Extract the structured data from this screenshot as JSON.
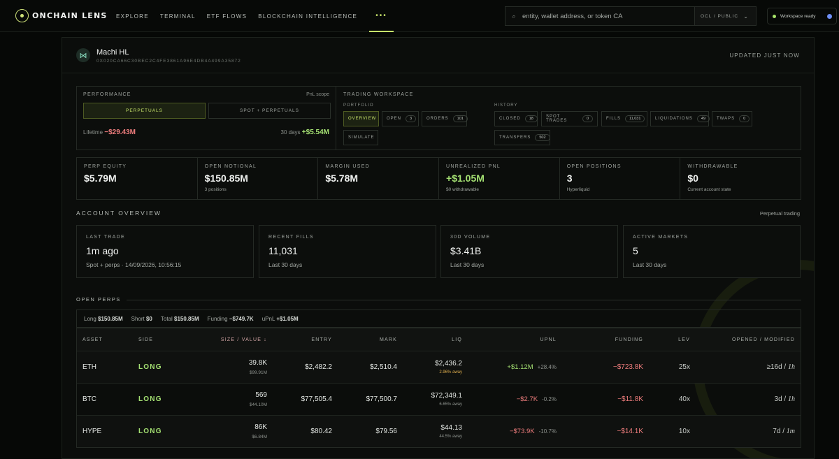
{
  "brand": {
    "name": "ONCHAIN LENS"
  },
  "nav": {
    "items": [
      "EXPLORE",
      "TERMINAL",
      "ETF FLOWS",
      "BLOCKCHAIN INTELLIGENCE"
    ],
    "more": "•••"
  },
  "search": {
    "placeholder": "entity, wallet address, or token CA",
    "scope": "OCL / PUBLIC"
  },
  "workspace": {
    "status": "Workspace ready"
  },
  "header": {
    "name": "Machi HL",
    "address": "0X020CA66C30BEC2C4FE3861A96E4DB4A499A35872",
    "updated": "UPDATED JUST NOW"
  },
  "performance": {
    "title": "PERFORMANCE",
    "scope": "PnL scope",
    "toggle_perps": "PERPETUALS",
    "toggle_spot": "SPOT + PERPETUALS",
    "lifetime_label": "Lifetime",
    "lifetime_value": "−$29.43M",
    "days_label": "30 days",
    "days_value": "+$5.54M"
  },
  "trading_workspace": {
    "title": "TRADING WORKSPACE",
    "portfolio_label": "PORTFOLIO",
    "history_label": "HISTORY",
    "overview": "OVERVIEW",
    "open": "OPEN",
    "open_count": "3",
    "orders": "ORDERS",
    "orders_count": "101",
    "simulate": "SIMULATE",
    "closed": "CLOSED",
    "closed_count": "18",
    "spot_trades": "SPOT TRADES",
    "spot_trades_count": "0",
    "fills": "FILLS",
    "fills_count": "11,031",
    "liquidations": "LIQUIDATIONS",
    "liquidations_count": "49",
    "twaps": "TWAPS",
    "twaps_count": "0",
    "transfers": "TRANSFERS",
    "transfers_count": "502"
  },
  "metrics": [
    {
      "label": "PERP EQUITY",
      "value": "$5.79M",
      "sub": ""
    },
    {
      "label": "OPEN NOTIONAL",
      "value": "$150.85M",
      "sub": "3 positions"
    },
    {
      "label": "MARGIN USED",
      "value": "$5.78M",
      "sub": ""
    },
    {
      "label": "UNREALIZED PNL",
      "value": "+$1.05M",
      "sub": "$0 withdrawable"
    },
    {
      "label": "OPEN POSITIONS",
      "value": "3",
      "sub": "Hyperliquid"
    },
    {
      "label": "WITHDRAWABLE",
      "value": "$0",
      "sub": "Current account state"
    }
  ],
  "account_overview": {
    "title": "ACCOUNT OVERVIEW",
    "right": "Perpetual trading",
    "stats": [
      {
        "label": "LAST TRADE",
        "value": "1m ago",
        "sub": "Spot + perps · 14/09/2026, 10:56:15"
      },
      {
        "label": "RECENT FILLS",
        "value": "11,031",
        "sub": "Last 30 days"
      },
      {
        "label": "30D VOLUME",
        "value": "$3.41B",
        "sub": "Last 30 days"
      },
      {
        "label": "ACTIVE MARKETS",
        "value": "5",
        "sub": "Last 30 days"
      }
    ]
  },
  "open_perps": {
    "title": "OPEN PERPS",
    "summary": {
      "long_label": "Long",
      "long": "$150.85M",
      "short_label": "Short",
      "short": "$0",
      "total_label": "Total",
      "total": "$150.85M",
      "funding_label": "Funding",
      "funding": "−$749.7K",
      "upnl_label": "uPnL",
      "upnl": "+$1.05M"
    },
    "columns": [
      "ASSET",
      "SIDE",
      "SIZE / VALUE ↓",
      "ENTRY",
      "MARK",
      "LIQ",
      "UPNL",
      "FUNDING",
      "LEV",
      "OPENED / MODIFIED"
    ],
    "rows": [
      {
        "asset": "ETH",
        "side": "LONG",
        "size": "39.8K",
        "value": "$99.91M",
        "entry": "$2,482.2",
        "mark": "$2,510.4",
        "liq": "$2,436.2",
        "liq_away": "2.96% away",
        "upnl": "+$1.12M",
        "upnl_pct": "+28.4%",
        "funding": "−$723.8K",
        "lev": "25x",
        "opened": "≥16d",
        "modified": "1h"
      },
      {
        "asset": "BTC",
        "side": "LONG",
        "size": "569",
        "value": "$44.10M",
        "entry": "$77,505.4",
        "mark": "$77,500.7",
        "liq": "$72,349.1",
        "liq_away": "6.65% away",
        "upnl": "−$2.7K",
        "upnl_pct": "-0.2%",
        "funding": "−$11.8K",
        "lev": "40x",
        "opened": "3d",
        "modified": "1h"
      },
      {
        "asset": "HYPE",
        "side": "LONG",
        "size": "86K",
        "value": "$6.84M",
        "entry": "$80.42",
        "mark": "$79.56",
        "liq": "$44.13",
        "liq_away": "44.5% away",
        "upnl": "−$73.9K",
        "upnl_pct": "-10.7%",
        "funding": "−$14.1K",
        "lev": "10x",
        "opened": "7d",
        "modified": "1m"
      }
    ]
  },
  "colors": {
    "accent": "#c6e36a",
    "positive": "#a4e072",
    "negative": "#ef7d7d",
    "warning": "#d9a94b",
    "background": "#060806"
  }
}
